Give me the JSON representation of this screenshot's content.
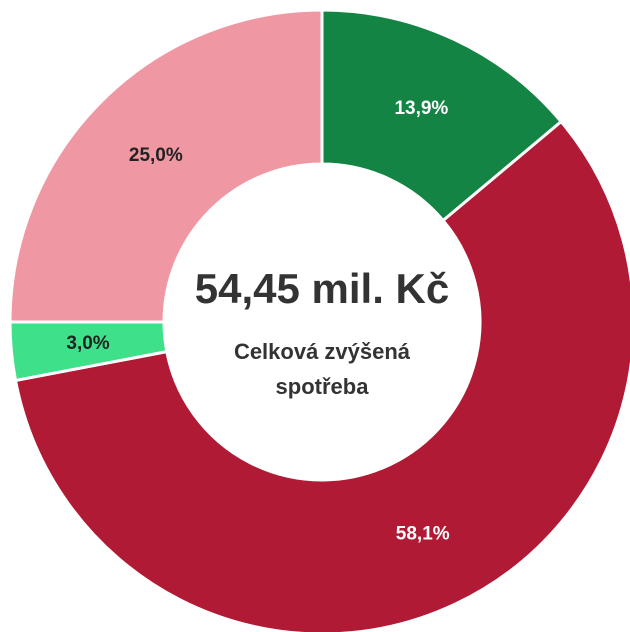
{
  "chart_data": {
    "type": "donut",
    "values": [
      13.9,
      58.1,
      3.0,
      25.0
    ],
    "value_labels": [
      "13,9%",
      "58,1%",
      "3,0%",
      "25,0%"
    ],
    "colors": [
      "#138443",
      "#b01a35",
      "#3ee08a",
      "#ef97a3"
    ],
    "center_title": "54,45 mil. Kč",
    "center_subtitle": "Celková zvýšená spotřeba"
  }
}
